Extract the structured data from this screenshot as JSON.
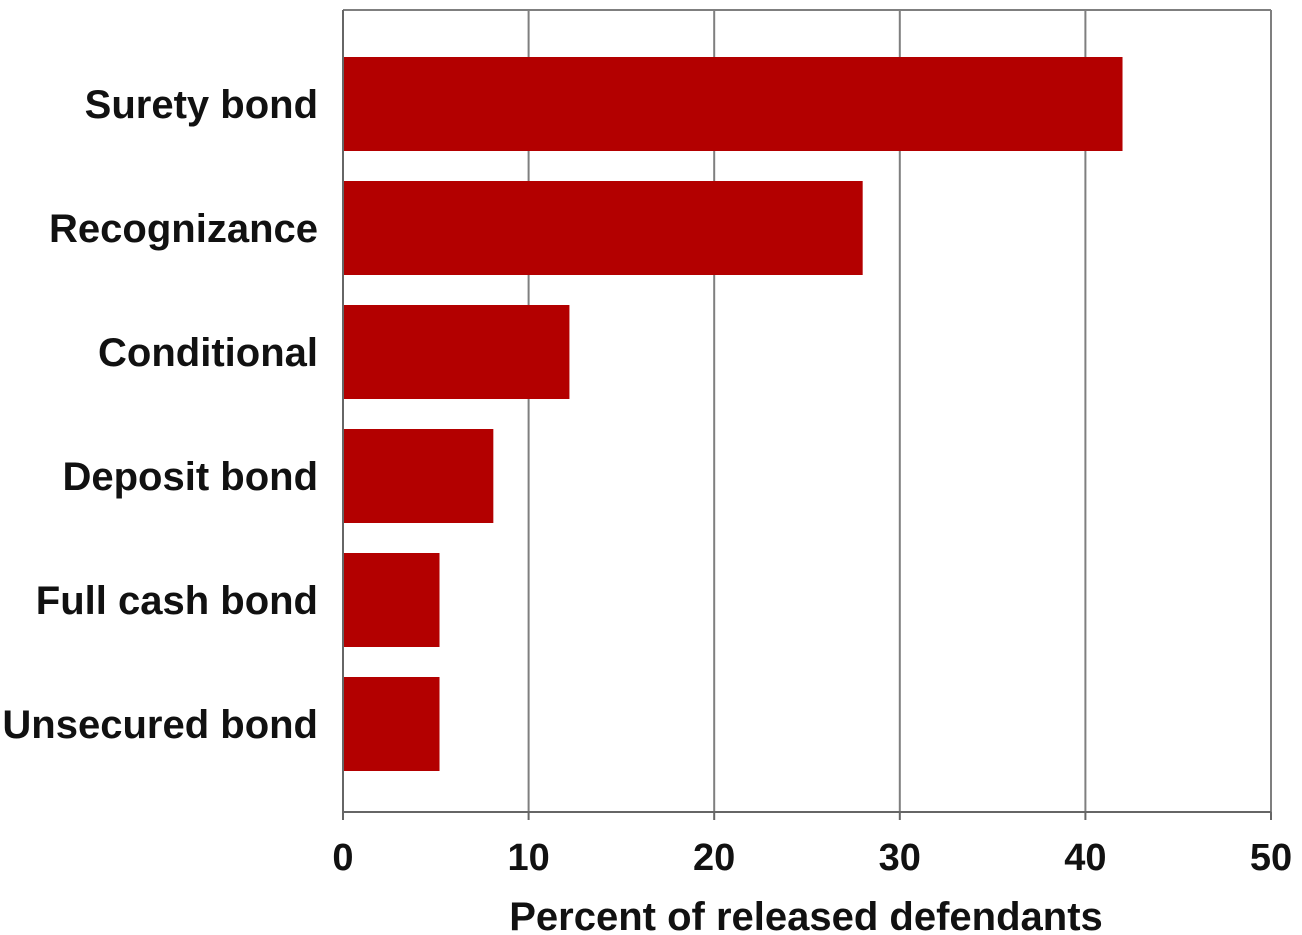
{
  "chart_data": {
    "type": "bar",
    "orientation": "horizontal",
    "categories": [
      "Surety bond",
      "Recognizance",
      "Conditional",
      "Deposit bond",
      "Full cash bond",
      "Unsecured bond"
    ],
    "values": [
      42,
      28,
      12.2,
      8.1,
      5.2,
      5.2
    ],
    "title": "",
    "xlabel": "Percent of released defendants",
    "ylabel": "",
    "xlim": [
      0,
      50
    ],
    "xticks": [
      "0",
      "10",
      "20",
      "30",
      "40",
      "50"
    ],
    "grid": true,
    "bar_color": "#b30000",
    "grid_color": "#7f7f7f"
  }
}
